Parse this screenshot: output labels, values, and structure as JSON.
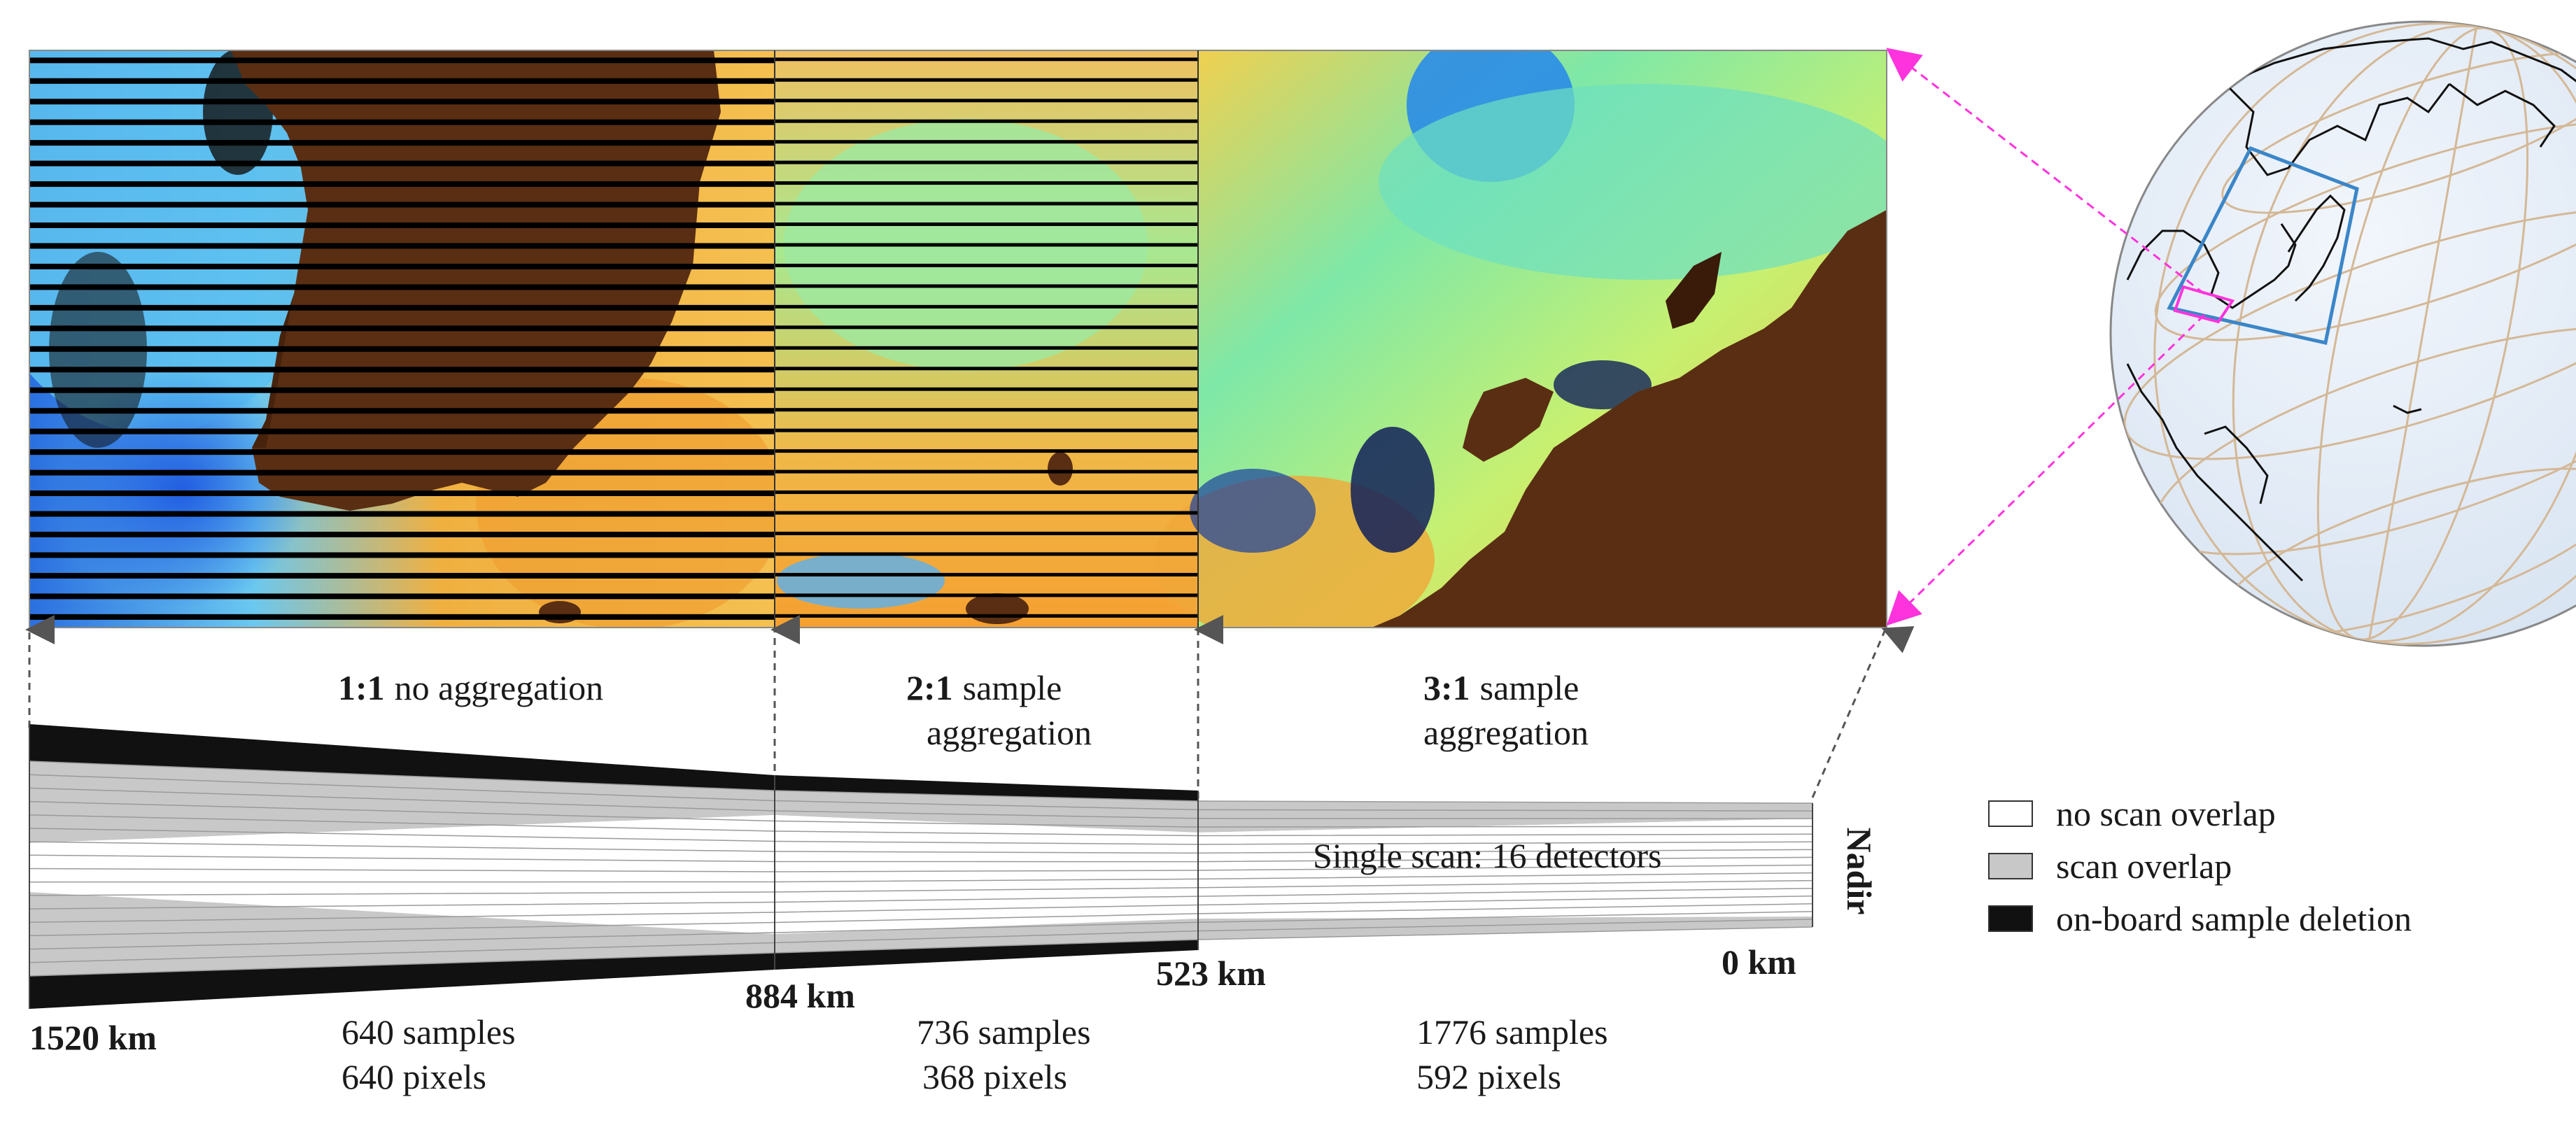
{
  "zones": [
    {
      "ratio": "1:1",
      "label_line1": "no aggregation",
      "label_line2": "",
      "samples": "640 samples",
      "pixels": "640 pixels"
    },
    {
      "ratio": "2:1",
      "label_line1": "sample",
      "label_line2": "aggregation",
      "samples": "736 samples",
      "pixels": "368 pixels"
    },
    {
      "ratio": "3:1",
      "label_line1": "sample",
      "label_line2": "aggregation",
      "samples": "1776 samples",
      "pixels": "592 pixels"
    }
  ],
  "distances": {
    "d1520": "1520 km",
    "d884": "884 km",
    "d523": "523 km",
    "d0": "0 km"
  },
  "scan_label": "Single scan: 16 detectors",
  "nadir_label": "Nadir",
  "legend": [
    {
      "label": "no scan overlap",
      "color": "#ffffff"
    },
    {
      "label": "scan overlap",
      "color": "#c8c8c8"
    },
    {
      "label": "on-board sample deletion",
      "color": "#111111"
    }
  ],
  "colors": {
    "land": "#5a2e12",
    "ocean_cold": "#2a7fe0",
    "ocean_mid": "#7ee0b0",
    "ocean_warm": "#f0b040",
    "globe_fill": "#e6eef8",
    "graticule": "#d4b896",
    "swath_box": "#3b86c8",
    "connector": "#ff33dd"
  },
  "icons": [
    "globe-icon"
  ]
}
